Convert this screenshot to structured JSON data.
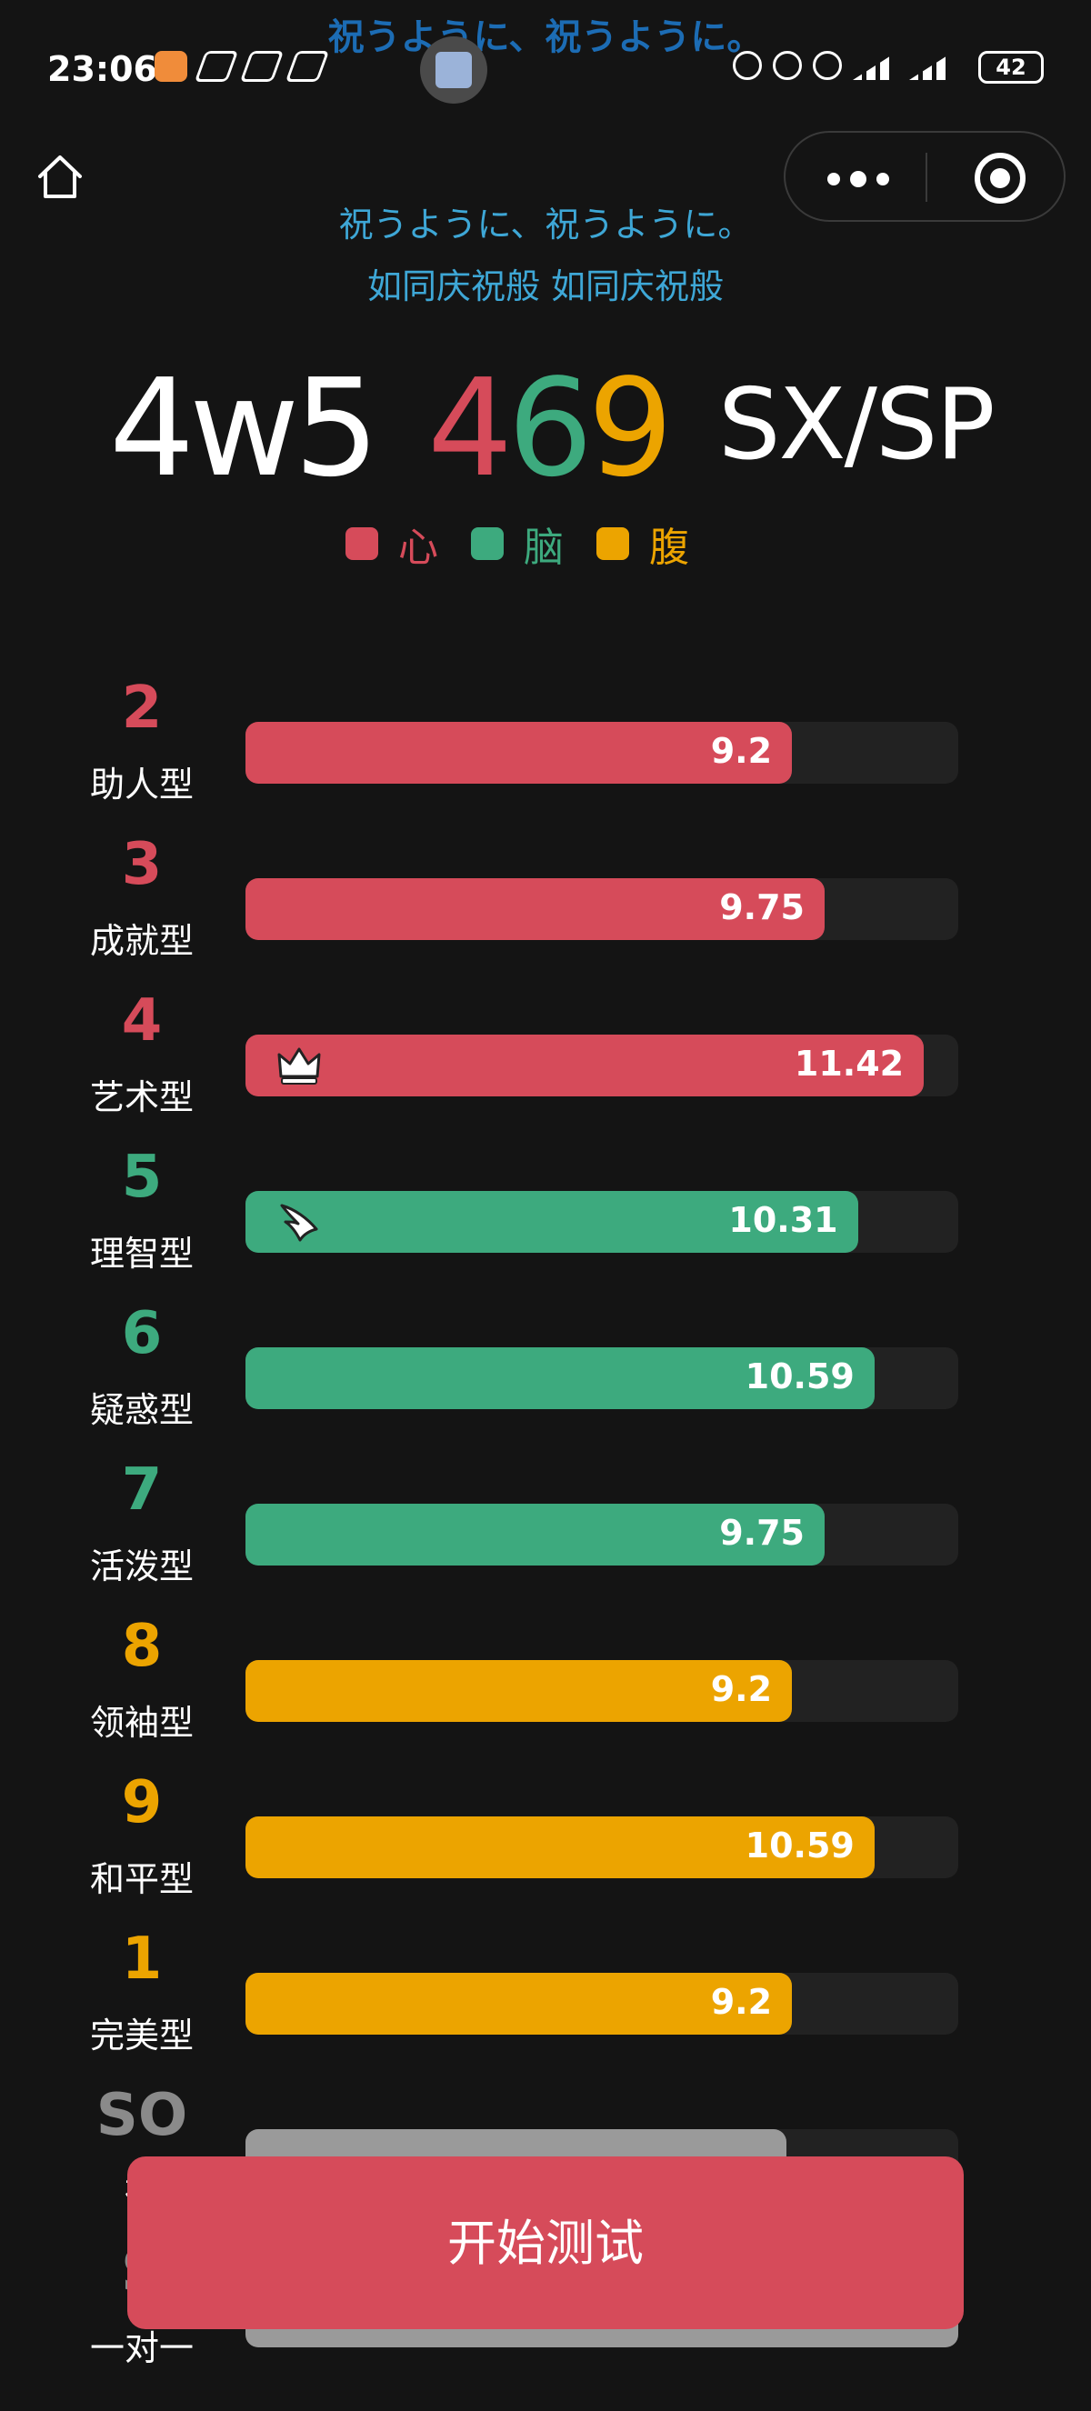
{
  "status_bar": {
    "time": "23:06",
    "overlay_title": "祝うように、祝うように。",
    "battery": "42"
  },
  "header": {
    "subtitle_line1": "祝うように、祝うように。",
    "subtitle_line2": "如同庆祝般 如同庆祝般"
  },
  "result": {
    "wing": "4w5",
    "tritype_digits": [
      "4",
      "6",
      "9"
    ],
    "instinct": "SX/SP"
  },
  "legend": [
    {
      "label": "心",
      "color": "#d64b5a"
    },
    {
      "label": "脑",
      "color": "#3daa7e"
    },
    {
      "label": "腹",
      "color": "#eca400"
    }
  ],
  "scale_max": 12,
  "types": [
    {
      "num": "2",
      "name": "助人型",
      "value": "9.2",
      "score": 9.2,
      "color": "#d64b5a",
      "icon": ""
    },
    {
      "num": "3",
      "name": "成就型",
      "value": "9.75",
      "score": 9.75,
      "color": "#d64b5a",
      "icon": ""
    },
    {
      "num": "4",
      "name": "艺术型",
      "value": "11.42",
      "score": 11.42,
      "color": "#d64b5a",
      "icon": "crown-icon"
    },
    {
      "num": "5",
      "name": "理智型",
      "value": "10.31",
      "score": 10.31,
      "color": "#3daa7e",
      "icon": "wing-icon"
    },
    {
      "num": "6",
      "name": "疑惑型",
      "value": "10.59",
      "score": 10.59,
      "color": "#3daa7e",
      "icon": ""
    },
    {
      "num": "7",
      "name": "活泼型",
      "value": "9.75",
      "score": 9.75,
      "color": "#3daa7e",
      "icon": ""
    },
    {
      "num": "8",
      "name": "领袖型",
      "value": "9.2",
      "score": 9.2,
      "color": "#eca400",
      "icon": ""
    },
    {
      "num": "9",
      "name": "和平型",
      "value": "10.59",
      "score": 10.59,
      "color": "#eca400",
      "icon": ""
    },
    {
      "num": "1",
      "name": "完美型",
      "value": "9.2",
      "score": 9.2,
      "color": "#eca400",
      "icon": ""
    }
  ],
  "instincts": [
    {
      "num": "SO",
      "name": "社",
      "value": "",
      "score": 9.1,
      "color": "#9a9a9a"
    },
    {
      "num": "S",
      "name": "一对一",
      "value": "",
      "score": 12,
      "color": "#9a9a9a"
    }
  ],
  "start_button": "开始测试"
}
